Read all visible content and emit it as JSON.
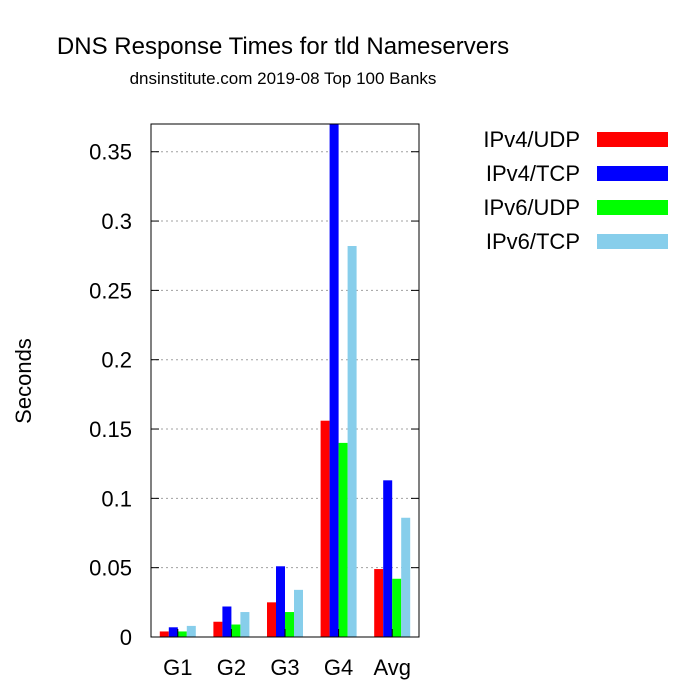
{
  "chart_data": {
    "type": "bar",
    "title": "DNS Response Times for tld Nameservers",
    "subtitle": "dnsinstitute.com 2019-08 Top 100 Banks",
    "xlabel": "",
    "ylabel": "Seconds",
    "ylim": [
      0,
      0.37
    ],
    "yticks": [
      {
        "value": 0,
        "label": "0"
      },
      {
        "value": 0.05,
        "label": "0.05"
      },
      {
        "value": 0.1,
        "label": "0.1"
      },
      {
        "value": 0.15,
        "label": "0.15"
      },
      {
        "value": 0.2,
        "label": "0.2"
      },
      {
        "value": 0.25,
        "label": "0.25"
      },
      {
        "value": 0.3,
        "label": "0.3"
      },
      {
        "value": 0.35,
        "label": "0.35"
      }
    ],
    "grid": true,
    "legend_position": "top-right-outside",
    "categories": [
      "G1",
      "G2",
      "G3",
      "G4",
      "Avg"
    ],
    "series": [
      {
        "name": "IPv4/UDP",
        "color": "#ff0000",
        "values": [
          0.004,
          0.011,
          0.025,
          0.156,
          0.049
        ]
      },
      {
        "name": "IPv4/TCP",
        "color": "#0000ff",
        "values": [
          0.007,
          0.022,
          0.051,
          0.37,
          0.113
        ]
      },
      {
        "name": "IPv6/UDP",
        "color": "#00ff00",
        "values": [
          0.004,
          0.009,
          0.018,
          0.14,
          0.042
        ]
      },
      {
        "name": "IPv6/TCP",
        "color": "#87ceeb",
        "values": [
          0.008,
          0.018,
          0.034,
          0.282,
          0.086
        ]
      }
    ]
  }
}
